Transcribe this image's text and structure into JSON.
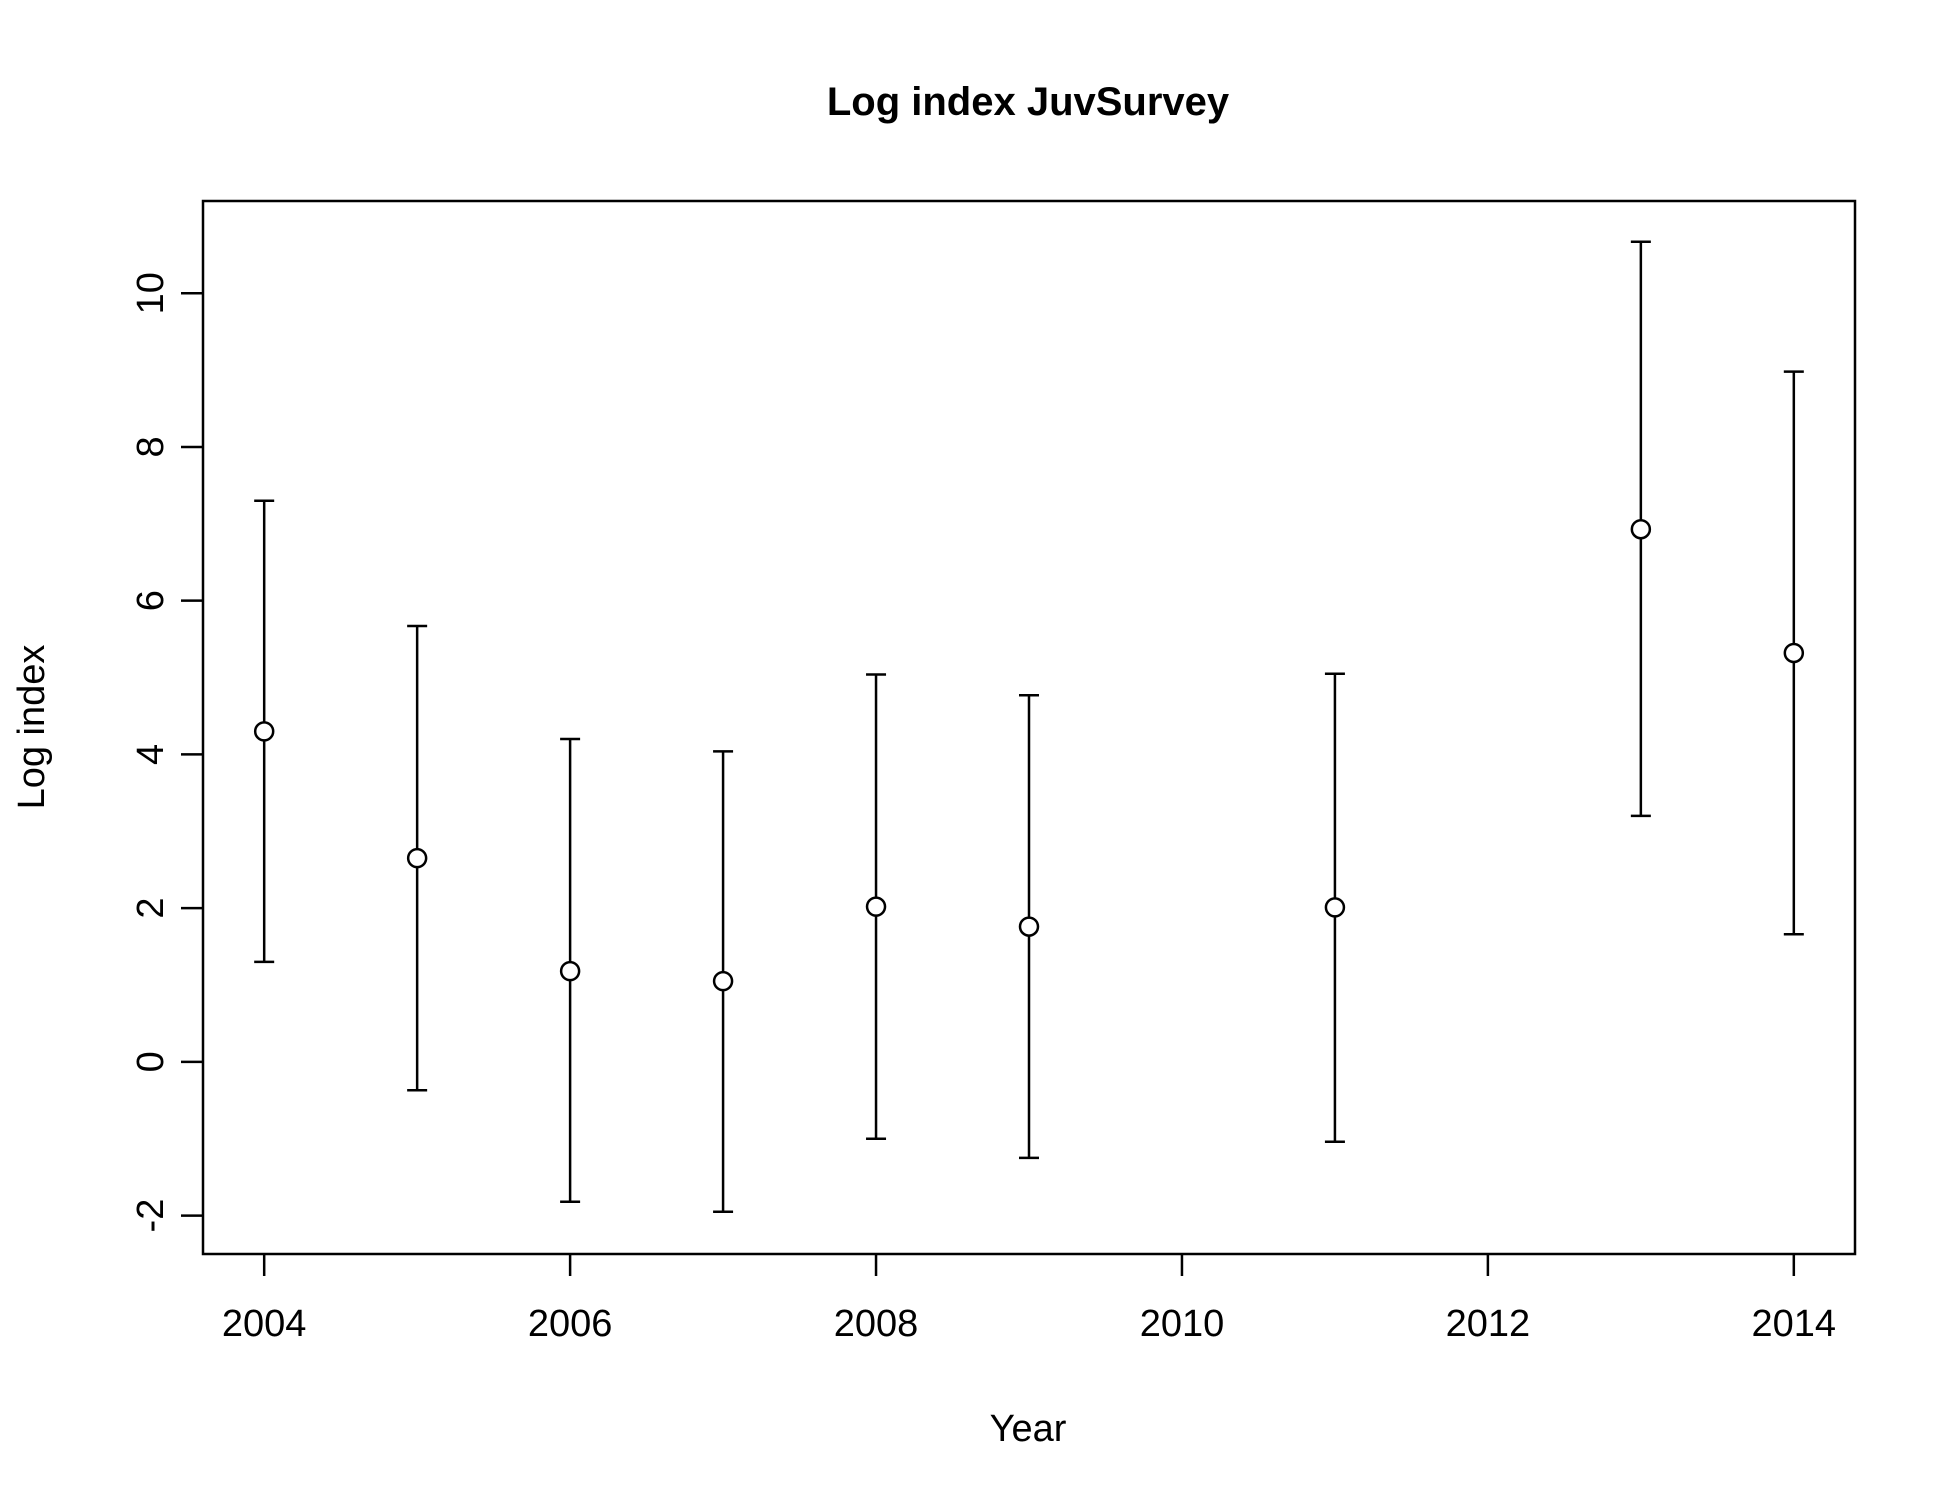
{
  "chart_data": {
    "type": "scatter",
    "title": "Log index JuvSurvey",
    "xlabel": "Year",
    "ylabel": "Log index",
    "xlim": [
      2003.6,
      2014.4
    ],
    "ylim": [
      -2.5,
      11.2
    ],
    "xticks": [
      2004,
      2006,
      2008,
      2010,
      2012,
      2014
    ],
    "yticks": [
      -2,
      0,
      2,
      4,
      6,
      8,
      10
    ],
    "grid": false,
    "points": [
      {
        "x": 2004,
        "y": 4.3,
        "lower": 1.3,
        "upper": 7.3
      },
      {
        "x": 2005,
        "y": 2.65,
        "lower": -0.37,
        "upper": 5.67
      },
      {
        "x": 2006,
        "y": 1.18,
        "lower": -1.82,
        "upper": 4.2
      },
      {
        "x": 2007,
        "y": 1.05,
        "lower": -1.95,
        "upper": 4.04
      },
      {
        "x": 2008,
        "y": 2.02,
        "lower": -1.0,
        "upper": 5.04
      },
      {
        "x": 2009,
        "y": 1.76,
        "lower": -1.25,
        "upper": 4.77
      },
      {
        "x": 2011,
        "y": 2.01,
        "lower": -1.04,
        "upper": 5.05
      },
      {
        "x": 2013,
        "y": 6.93,
        "lower": 3.2,
        "upper": 10.67
      },
      {
        "x": 2014,
        "y": 5.32,
        "lower": 1.66,
        "upper": 8.98
      }
    ]
  }
}
